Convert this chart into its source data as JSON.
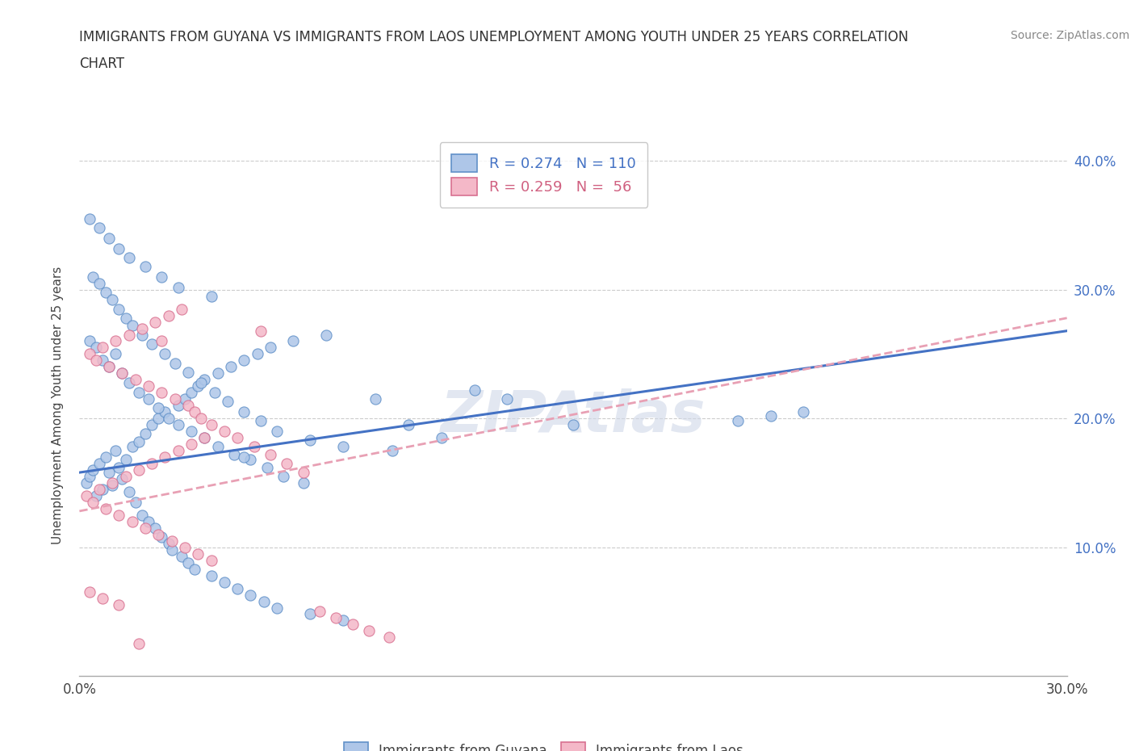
{
  "title_line1": "IMMIGRANTS FROM GUYANA VS IMMIGRANTS FROM LAOS UNEMPLOYMENT AMONG YOUTH UNDER 25 YEARS CORRELATION",
  "title_line2": "CHART",
  "source_text": "Source: ZipAtlas.com",
  "ylabel": "Unemployment Among Youth under 25 years",
  "xlim": [
    0.0,
    0.3
  ],
  "ylim": [
    0.0,
    0.42
  ],
  "x_ticks": [
    0.0,
    0.05,
    0.1,
    0.15,
    0.2,
    0.25,
    0.3
  ],
  "x_tick_labels": [
    "0.0%",
    "",
    "",
    "",
    "",
    "",
    "30.0%"
  ],
  "y_ticks": [
    0.0,
    0.1,
    0.2,
    0.3,
    0.4
  ],
  "y_tick_labels_right": [
    "",
    "10.0%",
    "20.0%",
    "30.0%",
    "40.0%"
  ],
  "guyana_fill_color": "#aec6e8",
  "guyana_edge_color": "#6090c8",
  "laos_fill_color": "#f4b8c8",
  "laos_edge_color": "#d87090",
  "guyana_line_color": "#4472c4",
  "laos_line_color": "#e8a0b4",
  "watermark": "ZIPAtlas",
  "legend_guyana_R": "0.274",
  "legend_guyana_N": "110",
  "legend_laos_R": "0.259",
  "legend_laos_N": " 56",
  "guyana_scatter_x": [
    0.002,
    0.003,
    0.004,
    0.005,
    0.006,
    0.007,
    0.008,
    0.009,
    0.01,
    0.011,
    0.012,
    0.013,
    0.014,
    0.015,
    0.016,
    0.017,
    0.018,
    0.019,
    0.02,
    0.021,
    0.022,
    0.023,
    0.024,
    0.025,
    0.026,
    0.027,
    0.028,
    0.03,
    0.031,
    0.032,
    0.033,
    0.034,
    0.035,
    0.036,
    0.038,
    0.04,
    0.042,
    0.044,
    0.046,
    0.048,
    0.05,
    0.052,
    0.054,
    0.056,
    0.058,
    0.06,
    0.065,
    0.07,
    0.075,
    0.08,
    0.003,
    0.005,
    0.007,
    0.009,
    0.011,
    0.013,
    0.015,
    0.018,
    0.021,
    0.024,
    0.027,
    0.03,
    0.034,
    0.038,
    0.042,
    0.047,
    0.052,
    0.057,
    0.062,
    0.068,
    0.004,
    0.006,
    0.008,
    0.01,
    0.012,
    0.014,
    0.016,
    0.019,
    0.022,
    0.026,
    0.029,
    0.033,
    0.037,
    0.041,
    0.045,
    0.05,
    0.055,
    0.06,
    0.09,
    0.1,
    0.003,
    0.006,
    0.009,
    0.012,
    0.015,
    0.02,
    0.025,
    0.03,
    0.04,
    0.12,
    0.13,
    0.2,
    0.21,
    0.22,
    0.05,
    0.07,
    0.08,
    0.095,
    0.11,
    0.15
  ],
  "guyana_scatter_y": [
    0.15,
    0.155,
    0.16,
    0.14,
    0.165,
    0.145,
    0.17,
    0.158,
    0.148,
    0.175,
    0.162,
    0.153,
    0.168,
    0.143,
    0.178,
    0.135,
    0.182,
    0.125,
    0.188,
    0.12,
    0.195,
    0.115,
    0.2,
    0.108,
    0.205,
    0.103,
    0.098,
    0.21,
    0.093,
    0.215,
    0.088,
    0.22,
    0.083,
    0.225,
    0.23,
    0.078,
    0.235,
    0.073,
    0.24,
    0.068,
    0.245,
    0.063,
    0.25,
    0.058,
    0.255,
    0.053,
    0.26,
    0.048,
    0.265,
    0.043,
    0.26,
    0.255,
    0.245,
    0.24,
    0.25,
    0.235,
    0.228,
    0.22,
    0.215,
    0.208,
    0.2,
    0.195,
    0.19,
    0.185,
    0.178,
    0.172,
    0.168,
    0.162,
    0.155,
    0.15,
    0.31,
    0.305,
    0.298,
    0.292,
    0.285,
    0.278,
    0.272,
    0.265,
    0.258,
    0.25,
    0.243,
    0.236,
    0.228,
    0.22,
    0.213,
    0.205,
    0.198,
    0.19,
    0.215,
    0.195,
    0.355,
    0.348,
    0.34,
    0.332,
    0.325,
    0.318,
    0.31,
    0.302,
    0.295,
    0.222,
    0.215,
    0.198,
    0.202,
    0.205,
    0.17,
    0.183,
    0.178,
    0.175,
    0.185,
    0.195
  ],
  "laos_scatter_x": [
    0.002,
    0.004,
    0.006,
    0.008,
    0.01,
    0.012,
    0.014,
    0.016,
    0.018,
    0.02,
    0.022,
    0.024,
    0.026,
    0.028,
    0.03,
    0.032,
    0.034,
    0.036,
    0.038,
    0.04,
    0.003,
    0.005,
    0.007,
    0.009,
    0.011,
    0.013,
    0.015,
    0.017,
    0.019,
    0.021,
    0.023,
    0.025,
    0.027,
    0.029,
    0.031,
    0.033,
    0.035,
    0.037,
    0.04,
    0.044,
    0.048,
    0.053,
    0.058,
    0.063,
    0.068,
    0.073,
    0.078,
    0.083,
    0.088,
    0.094,
    0.003,
    0.007,
    0.012,
    0.018,
    0.025,
    0.055
  ],
  "laos_scatter_y": [
    0.14,
    0.135,
    0.145,
    0.13,
    0.15,
    0.125,
    0.155,
    0.12,
    0.16,
    0.115,
    0.165,
    0.11,
    0.17,
    0.105,
    0.175,
    0.1,
    0.18,
    0.095,
    0.185,
    0.09,
    0.25,
    0.245,
    0.255,
    0.24,
    0.26,
    0.235,
    0.265,
    0.23,
    0.27,
    0.225,
    0.275,
    0.22,
    0.28,
    0.215,
    0.285,
    0.21,
    0.205,
    0.2,
    0.195,
    0.19,
    0.185,
    0.178,
    0.172,
    0.165,
    0.158,
    0.05,
    0.045,
    0.04,
    0.035,
    0.03,
    0.065,
    0.06,
    0.055,
    0.025,
    0.26,
    0.268
  ],
  "guyana_line_x": [
    0.0,
    0.3
  ],
  "guyana_line_y": [
    0.158,
    0.268
  ],
  "laos_line_x": [
    0.0,
    0.3
  ],
  "laos_line_y": [
    0.128,
    0.278
  ],
  "background_color": "#ffffff",
  "grid_color": "#cccccc"
}
